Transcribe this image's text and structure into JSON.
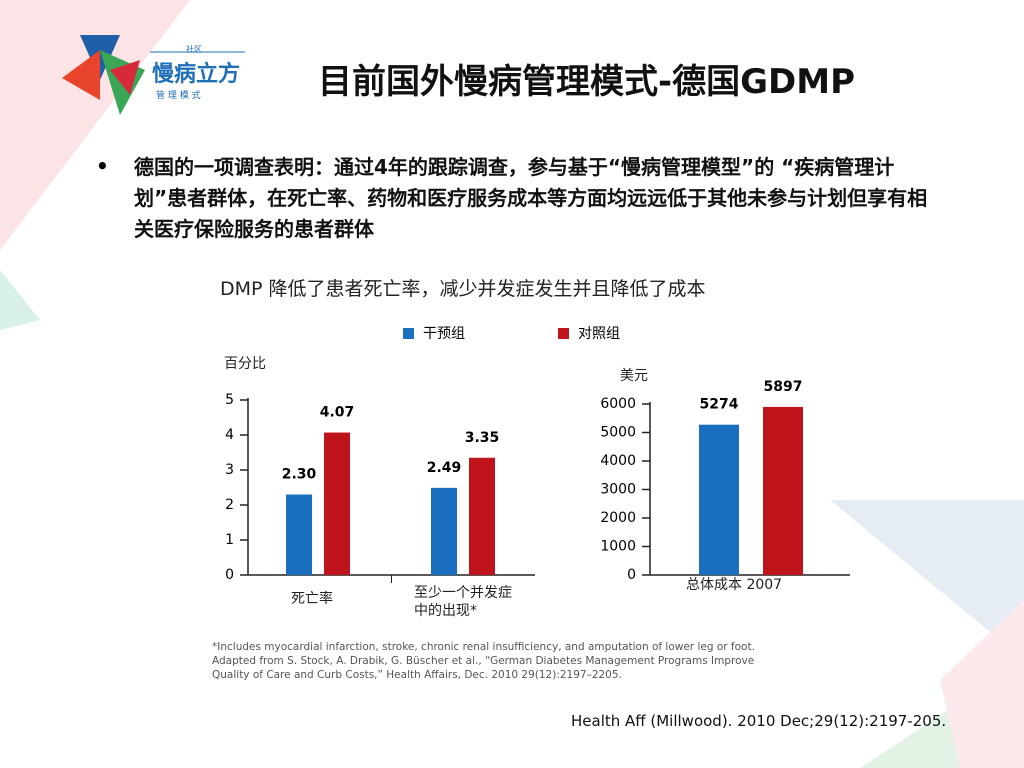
{
  "logo": {
    "top": "社区",
    "name": "慢病立方",
    "sub": "管 理 模 式"
  },
  "title": "目前国外慢病管理模式-德国GDMP",
  "bullet": "德国的一项调查表明：通过4年的跟踪调查，参与基于“慢病管理模型”的 “疾病管理计划”患者群体，在死亡率、药物和医疗服务成本等方面均远远低于其他未参与计划但享有相关医疗保险服务的患者群体",
  "heading": "DMP 降低了患者死亡率，减少并发症发生并且降低了成本",
  "chart_data": [
    {
      "type": "bar",
      "y_label": "百分比",
      "categories": [
        "死亡率",
        "至少一个并发症中的出现*"
      ],
      "series": [
        {
          "name": "干预组",
          "color": "#1a6fc0",
          "values": [
            2.3,
            2.49
          ],
          "value_labels": [
            "2.30",
            "2.49"
          ]
        },
        {
          "name": "对照组",
          "color": "#c0141c",
          "values": [
            4.07,
            3.35
          ]
        }
      ],
      "ylim": [
        0,
        5
      ],
      "yticks": [
        0,
        1,
        2,
        3,
        4,
        5
      ]
    },
    {
      "type": "bar",
      "y_label": "美元",
      "categories": [
        "总体成本 2007"
      ],
      "series": [
        {
          "color": "#1a6fc0",
          "values": [
            5274
          ]
        },
        {
          "color": "#c0141c",
          "values": [
            5897
          ]
        }
      ],
      "ylim": [
        0,
        6000
      ],
      "yticks": [
        0,
        1000,
        2000,
        3000,
        4000,
        5000,
        6000
      ]
    }
  ],
  "footnote": [
    "*Includes myocardial infarction, stroke, chronic renal insufficiency, and amputation of lower leg or foot.",
    "Adapted from S. Stock, A. Drabik, G. Büscher et al., “German Diabetes Management Programs Improve",
    "Quality of Care and Curb Costs,” Health Affairs, Dec. 2010 29(12):2197–2205."
  ],
  "citation": "Health Aff (Millwood). 2010 Dec;29(12):2197-205."
}
